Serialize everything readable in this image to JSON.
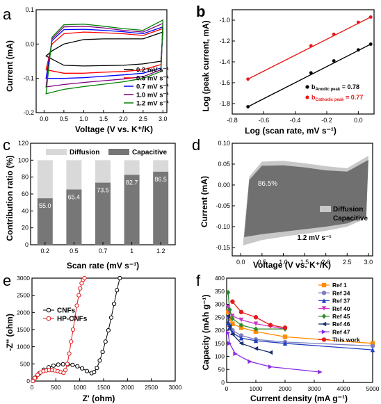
{
  "panels": {
    "a": {
      "letter": "a"
    },
    "b": {
      "letter": "b"
    },
    "c": {
      "letter": "c"
    },
    "d": {
      "letter": "d"
    },
    "e": {
      "letter": "e"
    },
    "f": {
      "letter": "f"
    }
  },
  "chart_data": [
    {
      "id": "a",
      "type": "line",
      "xlabel": "Voltage (V vs. K⁺/K)",
      "ylabel": "Current (mA)",
      "xlim": [
        -0.2,
        3.1
      ],
      "ylim": [
        -0.2,
        0.1
      ],
      "xticks": [
        "0.0",
        "0.5",
        "1.0",
        "1.5",
        "2.0",
        "2.5",
        "3.0"
      ],
      "yticks": [
        "-0.2",
        "-0.1",
        "0.0",
        "0.1"
      ],
      "legend_position": "lower-right",
      "series": [
        {
          "name": "0.2 mV s⁻¹",
          "color": "#000000",
          "x": [
            0.05,
            0.5,
            1.0,
            1.5,
            2.0,
            2.5,
            2.95,
            3.0,
            2.5,
            2.0,
            1.5,
            1.0,
            0.5,
            0.2,
            0.05
          ],
          "y": [
            -0.035,
            -0.062,
            -0.064,
            -0.063,
            -0.062,
            -0.058,
            -0.05,
            0.035,
            0.015,
            0.015,
            0.015,
            0.013,
            0.0,
            -0.02,
            -0.035
          ]
        },
        {
          "name": "0.5 mV s⁻¹",
          "color": "#ff0000",
          "x": [
            0.05,
            0.5,
            1.0,
            1.5,
            2.0,
            2.5,
            2.95,
            3.0,
            2.5,
            2.0,
            1.5,
            1.0,
            0.5,
            0.2,
            0.05
          ],
          "y": [
            -0.075,
            -0.085,
            -0.085,
            -0.082,
            -0.08,
            -0.075,
            -0.06,
            0.045,
            0.025,
            0.03,
            0.033,
            0.035,
            0.03,
            0.0,
            -0.075
          ]
        },
        {
          "name": "0.7 mV s⁻¹",
          "color": "#0000ff",
          "x": [
            0.05,
            0.5,
            1.0,
            1.5,
            2.0,
            2.5,
            2.95,
            3.0,
            2.5,
            2.0,
            1.5,
            1.0,
            0.5,
            0.2,
            0.05
          ],
          "y": [
            -0.1,
            -0.1,
            -0.098,
            -0.094,
            -0.09,
            -0.085,
            -0.07,
            0.05,
            0.03,
            0.036,
            0.04,
            0.043,
            0.042,
            0.01,
            -0.1
          ]
        },
        {
          "name": "1.0 mV s⁻¹",
          "color": "#800080",
          "x": [
            0.05,
            0.5,
            1.0,
            1.5,
            2.0,
            2.5,
            2.95,
            3.0,
            2.5,
            2.0,
            1.5,
            1.0,
            0.5,
            0.2,
            0.05
          ],
          "y": [
            -0.125,
            -0.118,
            -0.112,
            -0.107,
            -0.102,
            -0.095,
            -0.075,
            0.06,
            0.035,
            0.04,
            0.047,
            0.052,
            0.05,
            0.015,
            -0.125
          ]
        },
        {
          "name": "1.2 mV s⁻¹",
          "color": "#008000",
          "x": [
            0.05,
            0.5,
            1.0,
            1.5,
            2.0,
            2.5,
            2.95,
            3.0,
            2.5,
            2.0,
            1.5,
            1.0,
            0.5,
            0.2,
            0.05
          ],
          "y": [
            -0.145,
            -0.132,
            -0.124,
            -0.117,
            -0.11,
            -0.1,
            -0.08,
            0.07,
            0.04,
            0.045,
            0.052,
            0.058,
            0.056,
            0.02,
            -0.145
          ]
        }
      ]
    },
    {
      "id": "b",
      "type": "scatter",
      "xlabel": "Log (scan rate, mV s⁻¹)",
      "ylabel": "Log (peak current, mA)",
      "xlim": [
        -0.8,
        0.1
      ],
      "ylim": [
        -1.9,
        -0.9
      ],
      "xticks": [
        "-0.8",
        "-0.6",
        "-0.4",
        "-0.2",
        "0.0"
      ],
      "yticks": [
        "-1.8",
        "-1.6",
        "-1.4",
        "-1.2",
        "-1.0"
      ],
      "legend_position": "lower-right",
      "series": [
        {
          "name_main": "b",
          "name_sub": "Anodic peak",
          "name_value": " = 0.78",
          "color": "#000000",
          "x": [
            -0.7,
            -0.3,
            -0.155,
            0.0,
            0.079
          ],
          "y": [
            -1.83,
            -1.505,
            -1.39,
            -1.285,
            -1.23
          ]
        },
        {
          "name_main": "b",
          "name_sub": "Cathodic peak",
          "name_value": " = 0.77",
          "color": "#e41a1c",
          "x": [
            -0.7,
            -0.3,
            -0.155,
            0.0,
            0.079
          ],
          "y": [
            -1.565,
            -1.245,
            -1.135,
            -1.02,
            -0.97
          ]
        }
      ]
    },
    {
      "id": "c",
      "type": "bar",
      "xlabel": "Scan rate (mV s⁻¹)",
      "ylabel": "Contribution ratio (%)",
      "ylim": [
        0,
        120
      ],
      "yticks": [
        "0",
        "20",
        "40",
        "60",
        "80",
        "100",
        "120"
      ],
      "categories": [
        "0.2",
        "0.5",
        "0.7",
        "1",
        "1.2"
      ],
      "series": [
        {
          "name": "Diffusion",
          "color": "#d9d9d9",
          "values": [
            45.0,
            34.6,
            26.5,
            17.3,
            13.5
          ]
        },
        {
          "name": "Capacitive",
          "color": "#777777",
          "values": [
            55.0,
            65.4,
            73.5,
            82.7,
            86.5
          ]
        }
      ],
      "data_labels": [
        "55.0",
        "65.4",
        "73.5",
        "82.7",
        "86.5"
      ]
    },
    {
      "id": "d",
      "type": "area",
      "xlabel": "Voltage (V vs. K⁺/K)",
      "ylabel": "Current (mA)",
      "xlim": [
        -0.2,
        3.1
      ],
      "ylim": [
        -0.17,
        0.1
      ],
      "xticks": [
        "0.0",
        "0.5",
        "1.0",
        "1.5",
        "2.0",
        "2.5",
        "3.0"
      ],
      "yticks": [
        "-0.15",
        "-0.10",
        "-0.05",
        "0.00",
        "0.05",
        "0.10"
      ],
      "annotation_percent": "86.5%",
      "annotation_rate": "1.2 mV s⁻¹",
      "series": [
        {
          "name": "Diffusion",
          "color": "#c8c8c8",
          "x": [
            0.05,
            0.5,
            1.0,
            1.5,
            2.0,
            2.5,
            2.95,
            3.0,
            2.5,
            2.0,
            1.5,
            1.0,
            0.5,
            0.2,
            0.05
          ],
          "y": [
            -0.145,
            -0.132,
            -0.124,
            -0.117,
            -0.11,
            -0.1,
            -0.08,
            0.07,
            0.04,
            0.045,
            0.052,
            0.058,
            0.056,
            0.02,
            -0.145
          ]
        },
        {
          "name": "Capacitive",
          "color": "#707070",
          "x": [
            0.08,
            0.5,
            1.0,
            1.5,
            2.0,
            2.5,
            2.95,
            3.0,
            2.5,
            2.0,
            1.5,
            1.0,
            0.5,
            0.2,
            0.08
          ],
          "y": [
            -0.125,
            -0.118,
            -0.112,
            -0.106,
            -0.1,
            -0.092,
            -0.075,
            0.06,
            0.032,
            0.035,
            0.042,
            0.047,
            0.046,
            0.012,
            -0.125
          ]
        }
      ]
    },
    {
      "id": "e",
      "type": "line",
      "xlabel": "Z' (ohm)",
      "ylabel": "-Z'' (ohm)",
      "xlim": [
        0,
        3000
      ],
      "ylim": [
        0,
        3000
      ],
      "xticks": [
        "0",
        "500",
        "1000",
        "1500",
        "2000",
        "2500",
        "3000"
      ],
      "yticks": [
        "0",
        "500",
        "1000",
        "1500",
        "2000",
        "2500",
        "3000"
      ],
      "legend_position": "center-left",
      "series": [
        {
          "name": "CNFs",
          "color": "#000000",
          "x": [
            20,
            70,
            150,
            250,
            350,
            450,
            550,
            650,
            750,
            850,
            950,
            1050,
            1150,
            1250,
            1300,
            1360,
            1420,
            1480,
            1540,
            1600,
            1660,
            1720,
            1780,
            1840
          ],
          "y": [
            0,
            100,
            220,
            330,
            400,
            450,
            480,
            490,
            485,
            470,
            430,
            370,
            290,
            230,
            260,
            380,
            600,
            850,
            1150,
            1480,
            1850,
            2250,
            2650,
            3000
          ]
        },
        {
          "name": "HP-CNFs",
          "color": "#e41a1c",
          "x": [
            20,
            60,
            120,
            180,
            240,
            300,
            360,
            420,
            480,
            540,
            600,
            660,
            700,
            740,
            780,
            820,
            860,
            900,
            940,
            980,
            1010,
            1040,
            1070,
            1100
          ],
          "y": [
            0,
            90,
            180,
            250,
            290,
            310,
            320,
            320,
            310,
            290,
            260,
            240,
            320,
            500,
            800,
            1150,
            1500,
            1850,
            2200,
            2500,
            2700,
            2850,
            2950,
            3000
          ]
        }
      ]
    },
    {
      "id": "f",
      "type": "line",
      "xlabel": "Current density (mA g⁻¹)",
      "ylabel": "Capacity (mAh g⁻¹)",
      "xlim": [
        0,
        5000
      ],
      "ylim": [
        0,
        400
      ],
      "xticks": [
        "0",
        "1000",
        "2000",
        "3000",
        "4000",
        "5000"
      ],
      "yticks": [
        "0",
        "50",
        "100",
        "150",
        "200",
        "250",
        "300",
        "350",
        "400"
      ],
      "legend_position": "top-right",
      "series": [
        {
          "name": "Ref 1",
          "color": "#ff8c00",
          "marker": "square",
          "x": [
            50,
            100,
            200,
            500,
            1000,
            2000,
            5000
          ],
          "y": [
            270,
            245,
            225,
            210,
            195,
            175,
            150
          ]
        },
        {
          "name": "Ref 34",
          "color": "#7f7fbf",
          "marker": "circle",
          "x": [
            50,
            100,
            200,
            500,
            1000,
            2000,
            5000
          ],
          "y": [
            250,
            220,
            200,
            180,
            165,
            155,
            140
          ]
        },
        {
          "name": "Ref 37",
          "color": "#1f3fbf",
          "marker": "triangle-up",
          "x": [
            50,
            100,
            200,
            500,
            1000,
            2000,
            5000
          ],
          "y": [
            230,
            210,
            190,
            170,
            160,
            150,
            125
          ]
        },
        {
          "name": "Ref 40",
          "color": "#cc33cc",
          "marker": "triangle-down",
          "x": [
            50,
            100,
            200,
            500,
            1000,
            1500,
            2000
          ],
          "y": [
            290,
            270,
            255,
            240,
            225,
            215,
            205
          ]
        },
        {
          "name": "Ref 45",
          "color": "#2e8b2e",
          "marker": "diamond",
          "x": [
            50,
            100,
            200,
            500,
            1000,
            2000
          ],
          "y": [
            345,
            280,
            245,
            220,
            205,
            205
          ]
        },
        {
          "name": "Ref 46",
          "color": "#1a2f6f",
          "marker": "triangle-left",
          "x": [
            50,
            100,
            200,
            500,
            1000,
            1500
          ],
          "y": [
            255,
            215,
            185,
            150,
            130,
            115
          ]
        },
        {
          "name": "Ref 47",
          "color": "#8a2be2",
          "marker": "triangle-right",
          "x": [
            50,
            100,
            300,
            800,
            1500,
            3200
          ],
          "y": [
            190,
            150,
            110,
            80,
            60,
            40
          ]
        },
        {
          "name": "This work",
          "color": "#e41a1c",
          "marker": "circle",
          "x": [
            200,
            500,
            1000,
            1500,
            2000
          ],
          "y": [
            310,
            270,
            250,
            220,
            210
          ]
        }
      ]
    }
  ]
}
